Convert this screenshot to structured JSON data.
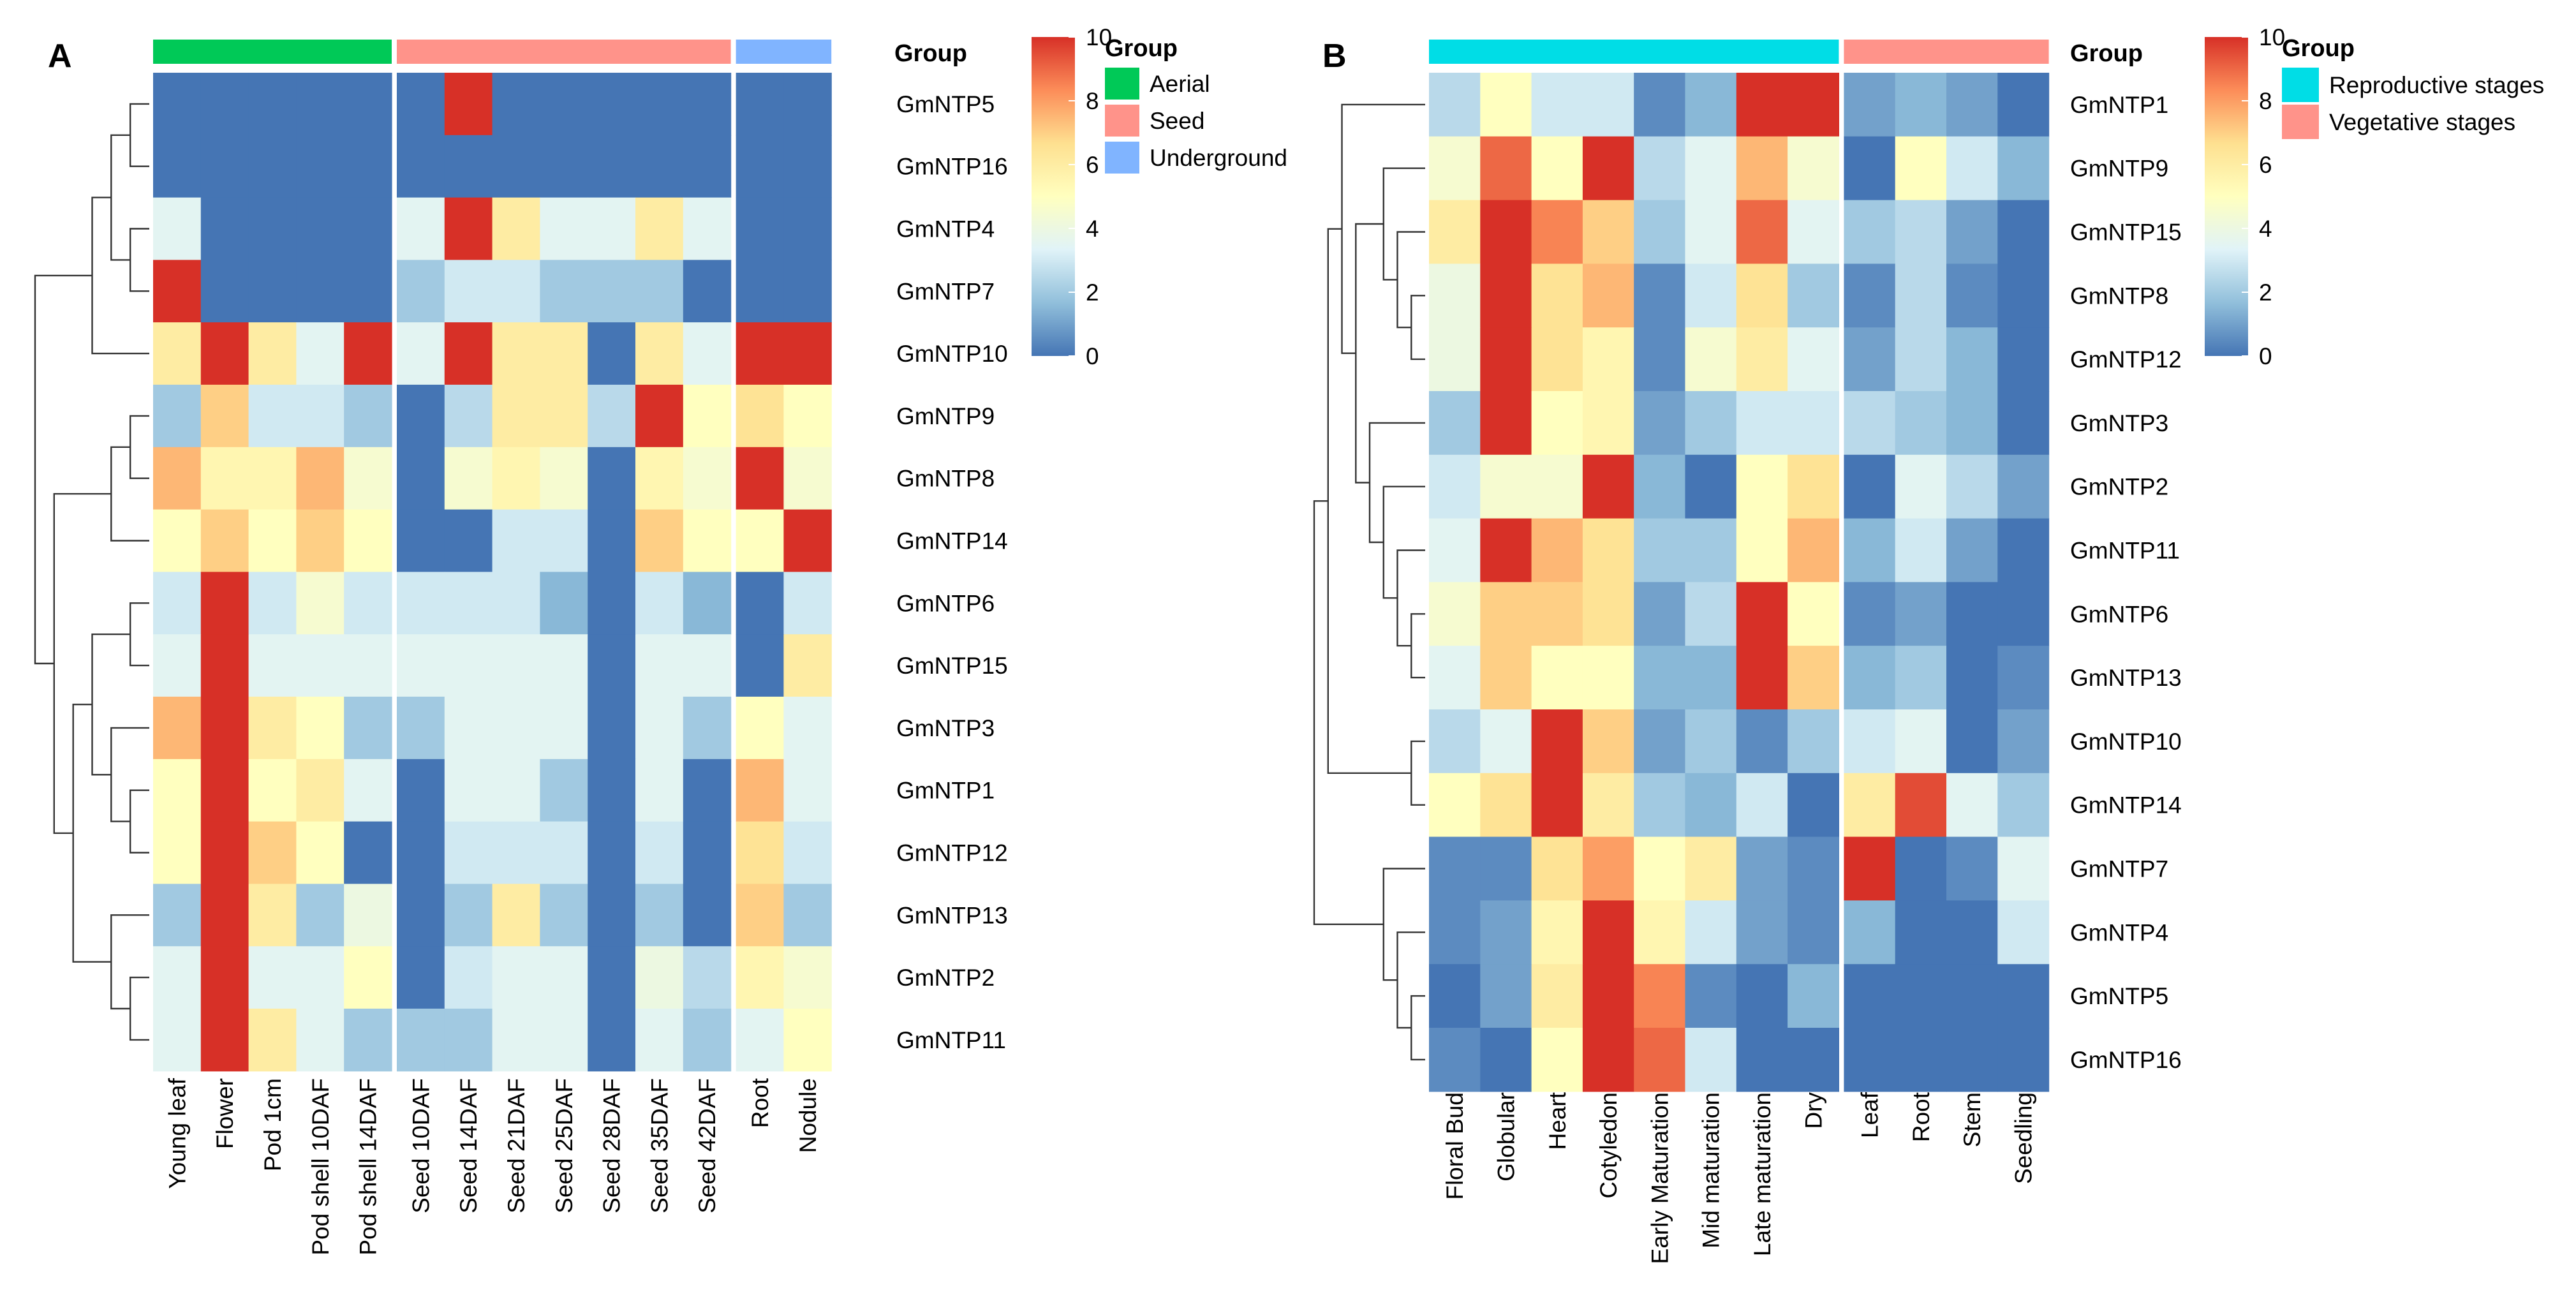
{
  "colors": {
    "scale": [
      "#4575B4",
      "#91BFDB",
      "#E0F3F8",
      "#FFFFBF",
      "#FEE090",
      "#FC8D59",
      "#D73027"
    ],
    "groupA": {
      "Aerial": "#00C957",
      "Seed": "#FF938A",
      "Underground": "#80B4FF"
    },
    "groupB": {
      "Reproductive stages": "#00DDE6",
      "Vegetative stages": "#FF938A"
    }
  },
  "chart_data": [
    {
      "type": "heatmap",
      "panel_label": "A",
      "title": "",
      "group_header": "Group",
      "legend_title": "Group",
      "colorbar": {
        "min": 0,
        "max": 10,
        "ticks": [
          "0",
          "2",
          "4",
          "6",
          "8",
          "10"
        ]
      },
      "columns": [
        "Young leaf",
        "Flower",
        "Pod 1cm",
        "Pod shell 10DAF",
        "Pod shell 14DAF",
        "Seed 10DAF",
        "Seed 14DAF",
        "Seed 21DAF",
        "Seed 25DAF",
        "Seed 28DAF",
        "Seed 35DAF",
        "Seed 42DAF",
        "Root",
        "Nodule"
      ],
      "column_groups": [
        "Aerial",
        "Aerial",
        "Aerial",
        "Aerial",
        "Aerial",
        "Seed",
        "Seed",
        "Seed",
        "Seed",
        "Seed",
        "Seed",
        "Seed",
        "Underground",
        "Underground"
      ],
      "group_names": [
        "Aerial",
        "Seed",
        "Underground"
      ],
      "rows": [
        "GmNTP5",
        "GmNTP16",
        "GmNTP4",
        "GmNTP7",
        "GmNTP10",
        "GmNTP9",
        "GmNTP8",
        "GmNTP14",
        "GmNTP6",
        "GmNTP15",
        "GmNTP3",
        "GmNTP1",
        "GmNTP12",
        "GmNTP13",
        "GmNTP2",
        "GmNTP11"
      ],
      "values": [
        [
          0,
          0,
          0,
          0,
          0,
          0,
          10,
          0,
          0,
          0,
          0,
          0,
          0,
          0
        ],
        [
          0,
          0,
          0,
          0,
          0,
          0,
          0,
          0,
          0,
          0,
          0,
          0,
          0,
          0
        ],
        [
          3.5,
          0,
          0,
          0,
          0,
          3.5,
          10,
          6,
          3.5,
          3.5,
          6,
          3.5,
          0,
          0
        ],
        [
          10,
          0,
          0,
          0,
          0,
          2,
          3,
          3,
          2,
          2,
          2,
          0,
          0,
          0
        ],
        [
          6,
          10,
          6,
          3.5,
          10,
          3.5,
          10,
          6,
          6,
          0,
          6,
          3.5,
          10,
          10
        ],
        [
          2,
          7,
          3,
          3,
          2,
          0,
          2.5,
          6,
          6,
          2.5,
          10,
          5,
          6.5,
          5
        ],
        [
          7.5,
          5.5,
          5.5,
          7.5,
          4.5,
          0,
          4.5,
          5.5,
          4.5,
          0,
          5.5,
          4.5,
          10,
          4.5
        ],
        [
          5,
          7,
          5,
          7,
          5,
          0,
          0,
          3,
          3,
          0,
          7,
          5,
          5,
          10
        ],
        [
          3,
          10,
          3,
          4.5,
          3,
          3,
          3,
          3,
          1.5,
          0,
          3,
          1.5,
          0,
          3
        ],
        [
          3.5,
          10,
          3.5,
          3.5,
          3.5,
          3.5,
          3.5,
          3.5,
          3.5,
          0,
          3.5,
          3.5,
          0,
          6
        ],
        [
          7.5,
          10,
          6,
          5,
          2,
          2,
          3.5,
          3.5,
          3.5,
          0,
          3.5,
          2,
          5,
          3.5
        ],
        [
          5,
          10,
          5,
          6,
          3.5,
          0,
          3.5,
          3.5,
          2,
          0,
          3.5,
          0,
          7.5,
          3.5
        ],
        [
          5,
          10,
          7,
          5,
          0,
          0,
          3,
          3,
          3,
          0,
          3,
          0,
          6.5,
          3
        ],
        [
          2,
          10,
          6,
          2,
          4,
          0,
          2,
          6,
          2,
          0,
          2,
          0,
          7,
          2
        ],
        [
          3.5,
          10,
          3.5,
          3.5,
          5,
          0,
          3,
          3.5,
          3.5,
          0,
          4,
          2.5,
          5.5,
          4.5
        ],
        [
          3.5,
          10,
          6,
          3.5,
          2,
          2,
          2,
          3.5,
          3.5,
          0,
          3.5,
          2,
          3.5,
          5
        ]
      ]
    },
    {
      "type": "heatmap",
      "panel_label": "B",
      "title": "",
      "group_header": "Group",
      "legend_title": "Group",
      "colorbar": {
        "min": 0,
        "max": 10,
        "ticks": [
          "0",
          "2",
          "4",
          "6",
          "8",
          "10"
        ]
      },
      "columns": [
        "Floral Bud",
        "Globular",
        "Heart",
        "Cotyledon",
        "Early Maturation",
        "Mid maturation",
        "Late maturation",
        "Dry",
        "Leaf",
        "Root",
        "Stem",
        "Seedling"
      ],
      "column_groups": [
        "Reproductive stages",
        "Reproductive stages",
        "Reproductive stages",
        "Reproductive stages",
        "Reproductive stages",
        "Reproductive stages",
        "Reproductive stages",
        "Reproductive stages",
        "Vegetative stages",
        "Vegetative stages",
        "Vegetative stages",
        "Vegetative stages"
      ],
      "group_names": [
        "Reproductive stages",
        "Vegetative stages"
      ],
      "rows": [
        "GmNTP1",
        "GmNTP9",
        "GmNTP15",
        "GmNTP8",
        "GmNTP12",
        "GmNTP3",
        "GmNTP2",
        "GmNTP11",
        "GmNTP6",
        "GmNTP13",
        "GmNTP10",
        "GmNTP14",
        "GmNTP7",
        "GmNTP4",
        "GmNTP5",
        "GmNTP16"
      ],
      "values": [
        [
          2.5,
          5,
          3,
          3,
          0.5,
          1.5,
          10,
          10,
          1,
          1.5,
          1,
          0
        ],
        [
          4.5,
          9,
          5,
          10,
          2.5,
          3.5,
          7.5,
          4.5,
          0,
          5,
          3,
          1.5
        ],
        [
          6,
          10,
          8.5,
          7,
          2,
          3.5,
          9,
          3.5,
          2,
          2.5,
          1,
          0
        ],
        [
          4,
          10,
          6.5,
          7.5,
          0.5,
          3,
          6.5,
          2,
          0.5,
          2.5,
          0.5,
          0
        ],
        [
          4,
          10,
          6.5,
          5.5,
          0.5,
          4.5,
          6,
          3.5,
          1,
          2.5,
          1.5,
          0
        ],
        [
          2,
          10,
          5,
          5.5,
          1,
          2,
          3,
          3,
          2.5,
          2,
          1.5,
          0
        ],
        [
          3,
          4.5,
          4.5,
          10,
          1.5,
          0,
          5,
          6.5,
          0,
          3.5,
          2.5,
          1
        ],
        [
          3.5,
          10,
          7.5,
          6.5,
          2,
          2,
          5,
          7.5,
          1.5,
          3,
          1,
          0
        ],
        [
          4.5,
          7,
          7,
          6.5,
          1,
          2.5,
          10,
          5,
          0.5,
          1,
          0,
          0
        ],
        [
          3.5,
          7,
          5,
          5,
          1.5,
          1.5,
          10,
          7,
          1.5,
          2,
          0,
          0.5
        ],
        [
          2.5,
          3.5,
          10,
          7,
          1,
          2,
          0.5,
          2,
          3,
          3.5,
          0,
          1
        ],
        [
          5,
          6.5,
          10,
          6,
          2,
          1.5,
          3,
          0,
          6,
          9.5,
          3.5,
          2
        ],
        [
          0.5,
          0.5,
          6.5,
          8,
          5,
          6,
          1,
          0.5,
          10,
          0,
          0.5,
          3.5
        ],
        [
          0.5,
          1,
          5.5,
          10,
          5.5,
          3,
          1,
          0.5,
          1.5,
          0,
          0,
          3
        ],
        [
          0,
          1,
          6,
          10,
          8.5,
          0.5,
          0,
          1.5,
          0,
          0,
          0,
          0
        ],
        [
          0.5,
          0,
          5,
          10,
          9,
          3,
          0,
          0,
          0,
          0,
          0,
          0
        ]
      ]
    }
  ]
}
